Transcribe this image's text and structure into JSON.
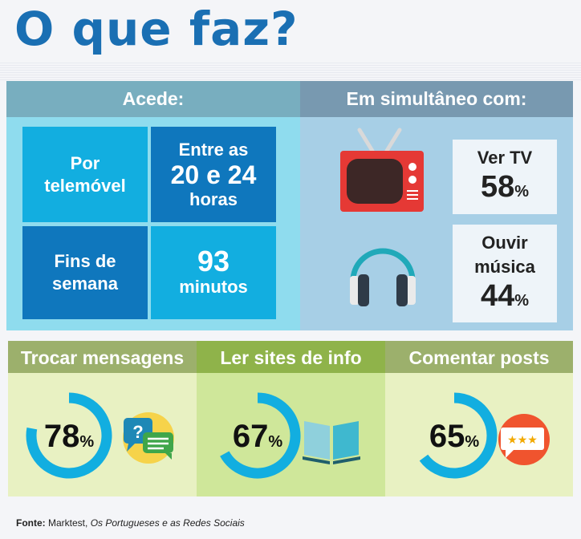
{
  "title": "O que faz?",
  "left_panel": {
    "header": "Acede:",
    "cells": {
      "phone": "Por telemóvel",
      "time_prefix": "Entre as",
      "time_value": "20 e 24",
      "time_suffix": "horas",
      "weekend": "Fins de semana",
      "minutes_value": "93",
      "minutes_label": "minutos"
    }
  },
  "right_panel": {
    "header": "Em simultâneo com:",
    "tv": {
      "label": "Ver TV",
      "value": "58",
      "unit": "%",
      "icon": "tv-icon"
    },
    "music": {
      "label": "Ouvir música",
      "value": "44",
      "unit": "%",
      "icon": "headphones-icon"
    }
  },
  "activities": [
    {
      "label": "Trocar mensagens",
      "value": 78,
      "value_text": "78",
      "unit": "%",
      "icon": "chat-bubbles-icon"
    },
    {
      "label": "Ler sites de info",
      "value": 67,
      "value_text": "67",
      "unit": "%",
      "icon": "open-book-icon"
    },
    {
      "label": "Comentar posts",
      "value": 65,
      "value_text": "65",
      "unit": "%",
      "icon": "rating-comment-icon"
    }
  ],
  "source": {
    "label": "Fonte:",
    "publisher": "Marktest,",
    "work": "Os Portugueses e as Redes Sociais"
  },
  "colors": {
    "ring": "#12aee0",
    "title": "#1a6fb3"
  }
}
